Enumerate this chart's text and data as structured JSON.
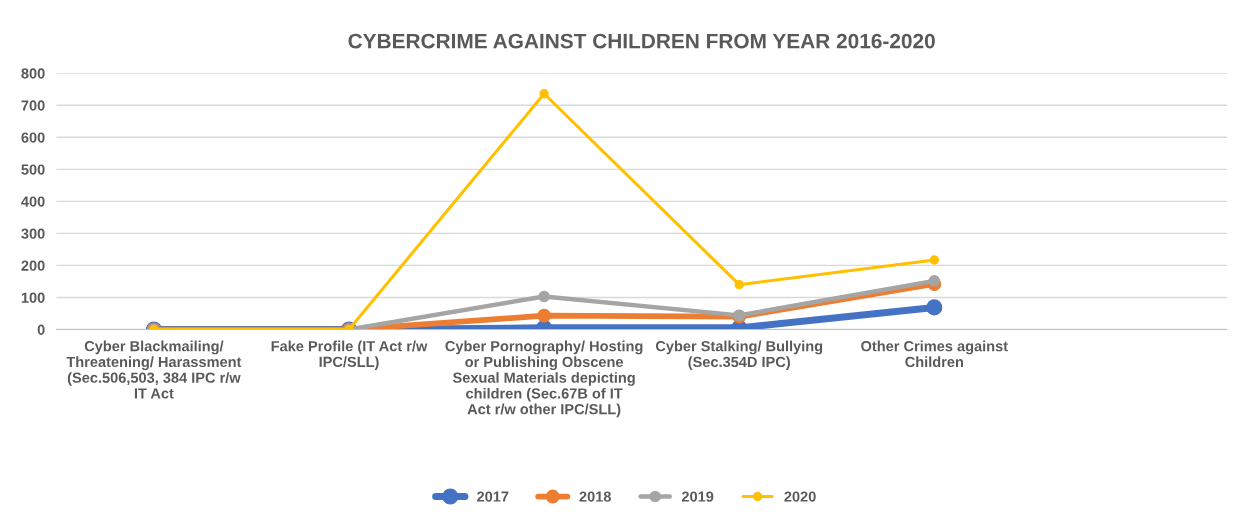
{
  "chart_data": {
    "type": "line",
    "title": "CYBERCRIME AGAINST CHILDREN FROM YEAR 2016-2020",
    "categories": [
      "Cyber Blackmailing/ Threatening/ Harassment (Sec.506,503, 384 IPC r/w IT Act",
      "Fake Profile (IT Act r/w IPC/SLL)",
      "Cyber Pornography/ Hosting or Publishing Obscene Sexual Materials depicting children (Sec.67B of IT Act r/w other IPC/SLL)",
      "Cyber Stalking/ Bullying (Sec.354D IPC)",
      "Other Crimes against Children",
      null
    ],
    "series": [
      {
        "name": "2017",
        "color": "#4472c4",
        "values": [
          0,
          0,
          5,
          5,
          69,
          null
        ]
      },
      {
        "name": "2018",
        "color": "#ed7d31",
        "values": [
          0,
          0,
          43,
          40,
          142,
          null
        ]
      },
      {
        "name": "2019",
        "color": "#a5a5a5",
        "values": [
          0,
          0,
          103,
          44,
          152,
          null
        ]
      },
      {
        "name": "2020",
        "color": "#ffc000",
        "values": [
          0,
          0,
          736,
          140,
          217,
          null
        ]
      }
    ],
    "ylim": [
      0,
      800
    ],
    "yticks": [
      0,
      100,
      200,
      300,
      400,
      500,
      600,
      700,
      800
    ],
    "grid": "y",
    "legend": "bottom",
    "marker": "circle",
    "line_style": "solid"
  }
}
